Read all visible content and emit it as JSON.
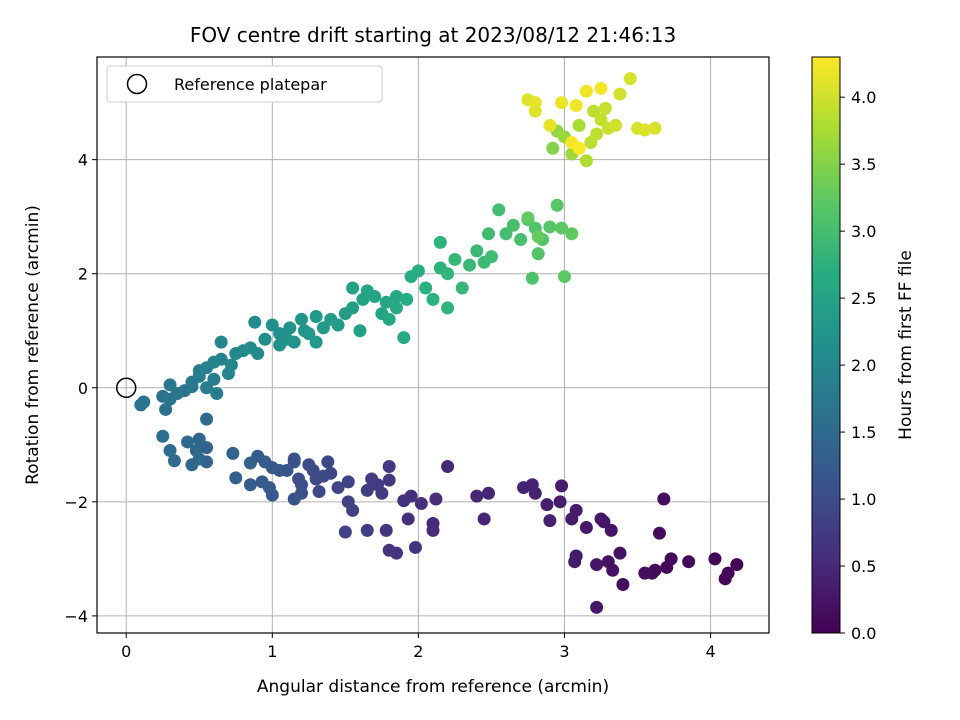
{
  "chart_data": {
    "type": "scatter",
    "title": "FOV centre drift starting at 2023/08/12 21:46:13",
    "xlabel": "Angular distance from reference (arcmin)",
    "ylabel": "Rotation from reference (arcmin)",
    "xlim": [
      -0.2,
      4.4
    ],
    "ylim": [
      -4.3,
      5.8
    ],
    "xticks": [
      0,
      1,
      2,
      3,
      4
    ],
    "yticks": [
      -4,
      -2,
      0,
      2,
      4
    ],
    "grid": true,
    "legend": {
      "label": "Reference platepar",
      "placement": "top-left"
    },
    "reference_point": {
      "x": 0,
      "y": 0
    },
    "colorbar": {
      "label": "Hours from first FF file",
      "colormap": "viridis",
      "range": [
        0.0,
        4.3
      ],
      "ticks": [
        "0.0",
        "0.5",
        "1.0",
        "1.5",
        "2.0",
        "2.5",
        "3.0",
        "3.5",
        "4.0"
      ]
    },
    "points": [
      {
        "x": 4.18,
        "y": -3.1,
        "h": 0.02
      },
      {
        "x": 4.12,
        "y": -3.25,
        "h": 0.04
      },
      {
        "x": 4.1,
        "y": -3.35,
        "h": 0.05
      },
      {
        "x": 4.03,
        "y": -3.0,
        "h": 0.06
      },
      {
        "x": 3.85,
        "y": -3.05,
        "h": 0.08
      },
      {
        "x": 3.73,
        "y": -3.0,
        "h": 0.1
      },
      {
        "x": 3.7,
        "y": -3.15,
        "h": 0.1
      },
      {
        "x": 3.62,
        "y": -3.2,
        "h": 0.12
      },
      {
        "x": 3.6,
        "y": -3.25,
        "h": 0.13
      },
      {
        "x": 3.65,
        "y": -2.55,
        "h": 0.14
      },
      {
        "x": 3.68,
        "y": -1.95,
        "h": 0.15
      },
      {
        "x": 3.55,
        "y": -3.25,
        "h": 0.16
      },
      {
        "x": 3.4,
        "y": -3.45,
        "h": 0.18
      },
      {
        "x": 3.38,
        "y": -2.9,
        "h": 0.2
      },
      {
        "x": 3.33,
        "y": -3.2,
        "h": 0.2
      },
      {
        "x": 3.3,
        "y": -3.05,
        "h": 0.22
      },
      {
        "x": 3.32,
        "y": -2.5,
        "h": 0.24
      },
      {
        "x": 3.27,
        "y": -2.35,
        "h": 0.25
      },
      {
        "x": 3.25,
        "y": -2.3,
        "h": 0.26
      },
      {
        "x": 3.22,
        "y": -3.1,
        "h": 0.27
      },
      {
        "x": 3.22,
        "y": -3.85,
        "h": 0.28
      },
      {
        "x": 3.15,
        "y": -2.45,
        "h": 0.3
      },
      {
        "x": 3.08,
        "y": -2.95,
        "h": 0.31
      },
      {
        "x": 3.07,
        "y": -3.05,
        "h": 0.32
      },
      {
        "x": 3.05,
        "y": -2.3,
        "h": 0.33
      },
      {
        "x": 3.08,
        "y": -2.15,
        "h": 0.34
      },
      {
        "x": 2.98,
        "y": -1.72,
        "h": 0.35
      },
      {
        "x": 2.97,
        "y": -2.0,
        "h": 0.36
      },
      {
        "x": 2.88,
        "y": -2.05,
        "h": 0.38
      },
      {
        "x": 2.9,
        "y": -2.33,
        "h": 0.39
      },
      {
        "x": 2.8,
        "y": -1.85,
        "h": 0.4
      },
      {
        "x": 2.78,
        "y": -1.7,
        "h": 0.42
      },
      {
        "x": 2.72,
        "y": -1.75,
        "h": 0.43
      },
      {
        "x": 2.45,
        "y": -2.3,
        "h": 0.45
      },
      {
        "x": 2.48,
        "y": -1.85,
        "h": 0.46
      },
      {
        "x": 2.4,
        "y": -1.9,
        "h": 0.48
      },
      {
        "x": 2.2,
        "y": -1.38,
        "h": 0.5
      },
      {
        "x": 2.1,
        "y": -2.38,
        "h": 0.52
      },
      {
        "x": 2.1,
        "y": -2.5,
        "h": 0.53
      },
      {
        "x": 2.12,
        "y": -1.95,
        "h": 0.55
      },
      {
        "x": 2.02,
        "y": -2.03,
        "h": 0.56
      },
      {
        "x": 1.95,
        "y": -1.9,
        "h": 0.58
      },
      {
        "x": 1.93,
        "y": -2.3,
        "h": 0.6
      },
      {
        "x": 1.9,
        "y": -1.98,
        "h": 0.62
      },
      {
        "x": 1.98,
        "y": -2.8,
        "h": 0.64
      },
      {
        "x": 1.85,
        "y": -2.9,
        "h": 0.66
      },
      {
        "x": 1.8,
        "y": -2.85,
        "h": 0.68
      },
      {
        "x": 1.78,
        "y": -2.5,
        "h": 0.7
      },
      {
        "x": 1.8,
        "y": -1.62,
        "h": 0.72
      },
      {
        "x": 1.8,
        "y": -1.38,
        "h": 0.74
      },
      {
        "x": 1.75,
        "y": -1.85,
        "h": 0.75
      },
      {
        "x": 1.72,
        "y": -1.7,
        "h": 0.76
      },
      {
        "x": 1.68,
        "y": -1.6,
        "h": 0.78
      },
      {
        "x": 1.65,
        "y": -1.8,
        "h": 0.8
      },
      {
        "x": 1.65,
        "y": -2.5,
        "h": 0.82
      },
      {
        "x": 1.55,
        "y": -2.15,
        "h": 0.84
      },
      {
        "x": 1.52,
        "y": -2.0,
        "h": 0.85
      },
      {
        "x": 1.5,
        "y": -2.53,
        "h": 0.86
      },
      {
        "x": 1.52,
        "y": -1.65,
        "h": 0.88
      },
      {
        "x": 1.45,
        "y": -1.75,
        "h": 0.9
      },
      {
        "x": 1.4,
        "y": -1.5,
        "h": 0.92
      },
      {
        "x": 1.38,
        "y": -1.3,
        "h": 0.94
      },
      {
        "x": 1.32,
        "y": -1.82,
        "h": 0.95
      },
      {
        "x": 1.3,
        "y": -1.6,
        "h": 0.97
      },
      {
        "x": 1.35,
        "y": -1.55,
        "h": 0.98
      },
      {
        "x": 1.28,
        "y": -1.45,
        "h": 1.0
      },
      {
        "x": 1.25,
        "y": -1.35,
        "h": 1.02
      },
      {
        "x": 1.2,
        "y": -1.7,
        "h": 1.04
      },
      {
        "x": 1.18,
        "y": -1.6,
        "h": 1.05
      },
      {
        "x": 1.15,
        "y": -1.25,
        "h": 1.06
      },
      {
        "x": 1.15,
        "y": -1.3,
        "h": 1.08
      },
      {
        "x": 1.2,
        "y": -1.85,
        "h": 1.1
      },
      {
        "x": 1.15,
        "y": -1.95,
        "h": 1.12
      },
      {
        "x": 1.1,
        "y": -1.45,
        "h": 1.14
      },
      {
        "x": 1.05,
        "y": -1.45,
        "h": 1.16
      },
      {
        "x": 1.0,
        "y": -1.88,
        "h": 1.18
      },
      {
        "x": 1.0,
        "y": -1.4,
        "h": 1.2
      },
      {
        "x": 0.98,
        "y": -1.75,
        "h": 1.22
      },
      {
        "x": 0.95,
        "y": -1.3,
        "h": 1.24
      },
      {
        "x": 0.93,
        "y": -1.65,
        "h": 1.26
      },
      {
        "x": 0.9,
        "y": -1.2,
        "h": 1.28
      },
      {
        "x": 0.85,
        "y": -1.7,
        "h": 1.3
      },
      {
        "x": 0.85,
        "y": -1.32,
        "h": 1.32
      },
      {
        "x": 0.75,
        "y": -1.58,
        "h": 1.34
      },
      {
        "x": 0.73,
        "y": -1.15,
        "h": 1.36
      },
      {
        "x": 0.55,
        "y": -1.05,
        "h": 1.38
      },
      {
        "x": 0.55,
        "y": -1.3,
        "h": 1.4
      },
      {
        "x": 0.5,
        "y": -0.9,
        "h": 1.42
      },
      {
        "x": 0.48,
        "y": -1.1,
        "h": 1.44
      },
      {
        "x": 0.45,
        "y": -1.35,
        "h": 1.46
      },
      {
        "x": 0.42,
        "y": -0.95,
        "h": 1.48
      },
      {
        "x": 0.5,
        "y": -1.25,
        "h": 1.5
      },
      {
        "x": 0.55,
        "y": -0.55,
        "h": 1.5
      },
      {
        "x": 0.33,
        "y": -1.28,
        "h": 1.52
      },
      {
        "x": 0.3,
        "y": -1.1,
        "h": 1.54
      },
      {
        "x": 0.25,
        "y": -0.85,
        "h": 1.56
      },
      {
        "x": 0.27,
        "y": -0.38,
        "h": 1.58
      },
      {
        "x": 0.25,
        "y": -0.15,
        "h": 1.6
      },
      {
        "x": 0.12,
        "y": -0.25,
        "h": 1.62
      },
      {
        "x": 0.1,
        "y": -0.3,
        "h": 1.64
      },
      {
        "x": 0.3,
        "y": -0.2,
        "h": 1.66
      },
      {
        "x": 0.35,
        "y": -0.1,
        "h": 1.68
      },
      {
        "x": 0.4,
        "y": -0.05,
        "h": 1.7
      },
      {
        "x": 0.3,
        "y": 0.05,
        "h": 1.72
      },
      {
        "x": 0.45,
        "y": 0.02,
        "h": 1.74
      },
      {
        "x": 0.45,
        "y": 0.1,
        "h": 1.76
      },
      {
        "x": 0.5,
        "y": 0.2,
        "h": 1.78
      },
      {
        "x": 0.55,
        "y": 0.0,
        "h": 1.8
      },
      {
        "x": 0.6,
        "y": 0.15,
        "h": 1.82
      },
      {
        "x": 0.62,
        "y": -0.1,
        "h": 1.84
      },
      {
        "x": 0.5,
        "y": 0.3,
        "h": 1.86
      },
      {
        "x": 0.55,
        "y": 0.35,
        "h": 1.88
      },
      {
        "x": 0.6,
        "y": 0.45,
        "h": 1.9
      },
      {
        "x": 0.65,
        "y": 0.5,
        "h": 1.92
      },
      {
        "x": 0.7,
        "y": 0.25,
        "h": 1.94
      },
      {
        "x": 0.72,
        "y": 0.4,
        "h": 1.96
      },
      {
        "x": 0.75,
        "y": 0.6,
        "h": 1.98
      },
      {
        "x": 0.65,
        "y": 0.8,
        "h": 2.0
      },
      {
        "x": 0.8,
        "y": 0.65,
        "h": 2.02
      },
      {
        "x": 0.85,
        "y": 0.7,
        "h": 2.04
      },
      {
        "x": 0.9,
        "y": 0.6,
        "h": 2.06
      },
      {
        "x": 0.88,
        "y": 1.15,
        "h": 2.08
      },
      {
        "x": 0.95,
        "y": 0.85,
        "h": 2.1
      },
      {
        "x": 1.0,
        "y": 1.1,
        "h": 2.12
      },
      {
        "x": 1.05,
        "y": 0.95,
        "h": 2.14
      },
      {
        "x": 1.05,
        "y": 0.75,
        "h": 2.16
      },
      {
        "x": 1.1,
        "y": 0.85,
        "h": 2.18
      },
      {
        "x": 1.12,
        "y": 1.05,
        "h": 2.2
      },
      {
        "x": 1.15,
        "y": 0.8,
        "h": 2.22
      },
      {
        "x": 1.2,
        "y": 1.2,
        "h": 2.24
      },
      {
        "x": 1.22,
        "y": 1.0,
        "h": 2.26
      },
      {
        "x": 1.25,
        "y": 0.95,
        "h": 2.28
      },
      {
        "x": 1.3,
        "y": 1.25,
        "h": 2.3
      },
      {
        "x": 1.3,
        "y": 0.8,
        "h": 2.32
      },
      {
        "x": 1.35,
        "y": 1.05,
        "h": 2.34
      },
      {
        "x": 1.4,
        "y": 1.2,
        "h": 2.36
      },
      {
        "x": 1.45,
        "y": 1.1,
        "h": 2.38
      },
      {
        "x": 1.5,
        "y": 1.3,
        "h": 2.4
      },
      {
        "x": 1.55,
        "y": 1.4,
        "h": 2.42
      },
      {
        "x": 1.6,
        "y": 1.0,
        "h": 2.44
      },
      {
        "x": 1.55,
        "y": 1.75,
        "h": 2.46
      },
      {
        "x": 1.62,
        "y": 1.55,
        "h": 2.48
      },
      {
        "x": 1.65,
        "y": 1.7,
        "h": 2.5
      },
      {
        "x": 1.7,
        "y": 1.6,
        "h": 2.52
      },
      {
        "x": 1.75,
        "y": 1.3,
        "h": 2.54
      },
      {
        "x": 1.78,
        "y": 1.5,
        "h": 2.56
      },
      {
        "x": 1.8,
        "y": 1.2,
        "h": 2.58
      },
      {
        "x": 1.85,
        "y": 1.4,
        "h": 2.6
      },
      {
        "x": 1.85,
        "y": 1.6,
        "h": 2.62
      },
      {
        "x": 1.9,
        "y": 0.88,
        "h": 2.64
      },
      {
        "x": 1.92,
        "y": 1.55,
        "h": 2.66
      },
      {
        "x": 1.95,
        "y": 1.95,
        "h": 2.68
      },
      {
        "x": 2.0,
        "y": 2.05,
        "h": 2.7
      },
      {
        "x": 2.05,
        "y": 1.75,
        "h": 2.72
      },
      {
        "x": 2.1,
        "y": 1.55,
        "h": 2.74
      },
      {
        "x": 2.15,
        "y": 2.1,
        "h": 2.76
      },
      {
        "x": 2.15,
        "y": 2.55,
        "h": 2.78
      },
      {
        "x": 2.2,
        "y": 1.4,
        "h": 2.8
      },
      {
        "x": 2.2,
        "y": 2.0,
        "h": 2.82
      },
      {
        "x": 2.25,
        "y": 2.25,
        "h": 2.84
      },
      {
        "x": 2.3,
        "y": 1.75,
        "h": 2.86
      },
      {
        "x": 2.35,
        "y": 2.15,
        "h": 2.88
      },
      {
        "x": 2.4,
        "y": 2.4,
        "h": 2.9
      },
      {
        "x": 2.45,
        "y": 2.2,
        "h": 2.92
      },
      {
        "x": 2.48,
        "y": 2.7,
        "h": 2.94
      },
      {
        "x": 2.5,
        "y": 2.3,
        "h": 2.96
      },
      {
        "x": 2.55,
        "y": 3.12,
        "h": 2.98
      },
      {
        "x": 2.6,
        "y": 2.7,
        "h": 3.0
      },
      {
        "x": 2.65,
        "y": 2.85,
        "h": 3.02
      },
      {
        "x": 2.7,
        "y": 2.6,
        "h": 3.04
      },
      {
        "x": 2.75,
        "y": 2.95,
        "h": 3.06
      },
      {
        "x": 2.78,
        "y": 1.92,
        "h": 3.08
      },
      {
        "x": 2.8,
        "y": 2.8,
        "h": 3.1
      },
      {
        "x": 2.82,
        "y": 2.35,
        "h": 3.12
      },
      {
        "x": 2.85,
        "y": 2.6,
        "h": 3.14
      },
      {
        "x": 2.9,
        "y": 2.82,
        "h": 3.16
      },
      {
        "x": 2.95,
        "y": 3.2,
        "h": 3.18
      },
      {
        "x": 2.98,
        "y": 2.8,
        "h": 3.2
      },
      {
        "x": 3.0,
        "y": 1.95,
        "h": 3.22
      },
      {
        "x": 3.05,
        "y": 2.7,
        "h": 3.24
      },
      {
        "x": 2.75,
        "y": 2.98,
        "h": 3.26
      },
      {
        "x": 2.82,
        "y": 2.65,
        "h": 3.28
      },
      {
        "x": 2.92,
        "y": 4.2,
        "h": 3.5
      },
      {
        "x": 2.95,
        "y": 4.5,
        "h": 3.6
      },
      {
        "x": 3.0,
        "y": 4.4,
        "h": 3.65
      },
      {
        "x": 3.05,
        "y": 4.1,
        "h": 3.7
      },
      {
        "x": 3.1,
        "y": 4.6,
        "h": 3.75
      },
      {
        "x": 3.15,
        "y": 3.98,
        "h": 3.8
      },
      {
        "x": 3.18,
        "y": 4.3,
        "h": 3.85
      },
      {
        "x": 3.2,
        "y": 4.85,
        "h": 3.88
      },
      {
        "x": 3.22,
        "y": 4.45,
        "h": 3.9
      },
      {
        "x": 3.25,
        "y": 4.7,
        "h": 3.92
      },
      {
        "x": 3.28,
        "y": 4.9,
        "h": 3.94
      },
      {
        "x": 3.3,
        "y": 4.55,
        "h": 3.96
      },
      {
        "x": 3.35,
        "y": 4.6,
        "h": 3.98
      },
      {
        "x": 3.38,
        "y": 5.15,
        "h": 4.0
      },
      {
        "x": 3.45,
        "y": 5.42,
        "h": 4.02
      },
      {
        "x": 3.5,
        "y": 4.55,
        "h": 4.04
      },
      {
        "x": 3.62,
        "y": 4.55,
        "h": 4.06
      },
      {
        "x": 3.55,
        "y": 4.52,
        "h": 4.08
      },
      {
        "x": 2.75,
        "y": 5.05,
        "h": 4.1
      },
      {
        "x": 2.8,
        "y": 4.85,
        "h": 4.12
      },
      {
        "x": 2.8,
        "y": 5.0,
        "h": 4.14
      },
      {
        "x": 2.9,
        "y": 4.6,
        "h": 4.16
      },
      {
        "x": 2.98,
        "y": 5.0,
        "h": 4.18
      },
      {
        "x": 3.08,
        "y": 4.95,
        "h": 4.2
      },
      {
        "x": 3.15,
        "y": 5.2,
        "h": 4.22
      },
      {
        "x": 3.25,
        "y": 5.25,
        "h": 4.24
      },
      {
        "x": 3.05,
        "y": 4.3,
        "h": 4.26
      },
      {
        "x": 3.1,
        "y": 4.2,
        "h": 4.28
      }
    ]
  }
}
